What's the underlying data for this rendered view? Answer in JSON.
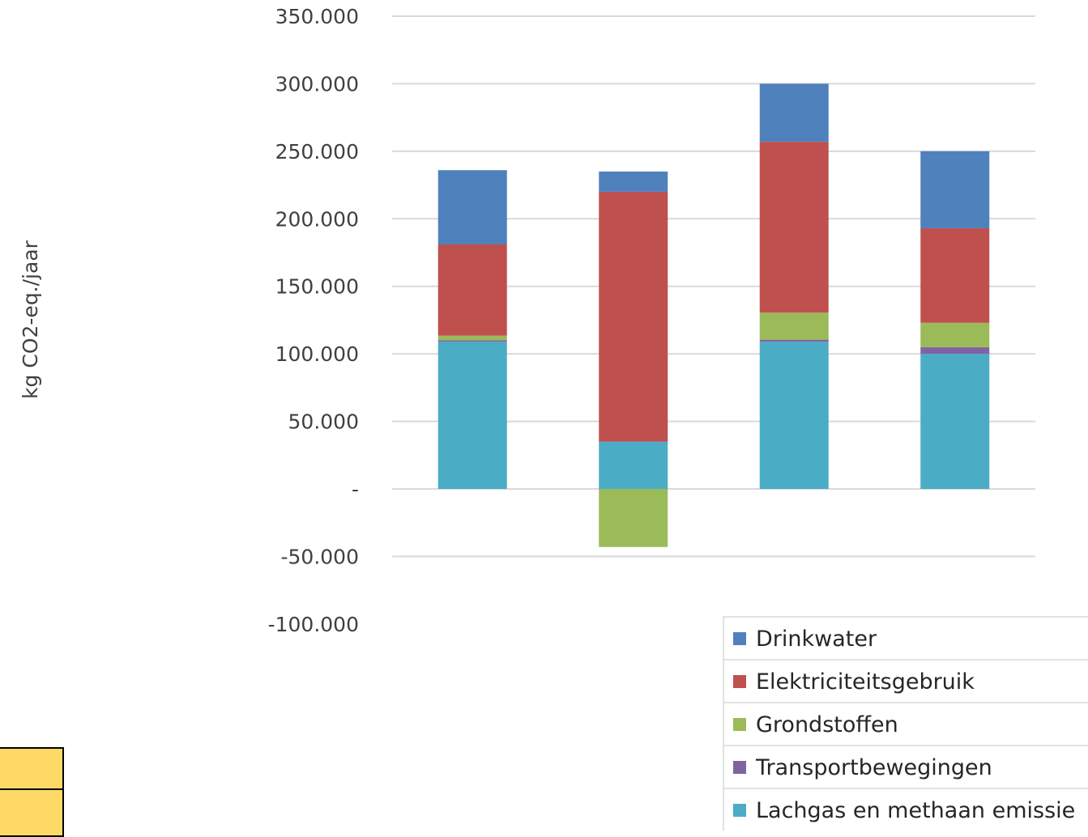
{
  "chart_data": {
    "type": "bar",
    "stacked": true,
    "categories": [
      "",
      "",
      "",
      ""
    ],
    "title": "",
    "xlabel": "",
    "ylabel": "kg CO2-eq./jaar",
    "ylim": [
      -100000,
      350000
    ],
    "ytick_step": 50000,
    "ytick_labels": [
      "-100.000",
      "-50.000",
      "-",
      "50.000",
      "100.000",
      "150.000",
      "200.000",
      "250.000",
      "300.000",
      "350.000"
    ],
    "grid": true,
    "legend_position": "bottom-right",
    "series": [
      {
        "name": "Lachgas en methaan emissie",
        "color": "#4BACC6",
        "values": [
          109000,
          35000,
          109000,
          100000
        ]
      },
      {
        "name": "Transportbewegingen",
        "color": "#8064A2",
        "values": [
          1000,
          0,
          1500,
          5000
        ]
      },
      {
        "name": "Grondstoffen",
        "color": "#9BBB59",
        "values": [
          3500,
          -43000,
          20000,
          18000
        ]
      },
      {
        "name": "Elektriciteitsgebruik",
        "color": "#C0504D",
        "values": [
          67500,
          185000,
          126500,
          70000
        ]
      },
      {
        "name": "Drinkwater",
        "color": "#4F81BD",
        "values": [
          55000,
          15000,
          43000,
          57000
        ]
      }
    ],
    "legend_order": [
      "Drinkwater",
      "Elektriciteitsgebruik",
      "Grondstoffen",
      "Transportbewegingen",
      "Lachgas en methaan emissie"
    ]
  }
}
